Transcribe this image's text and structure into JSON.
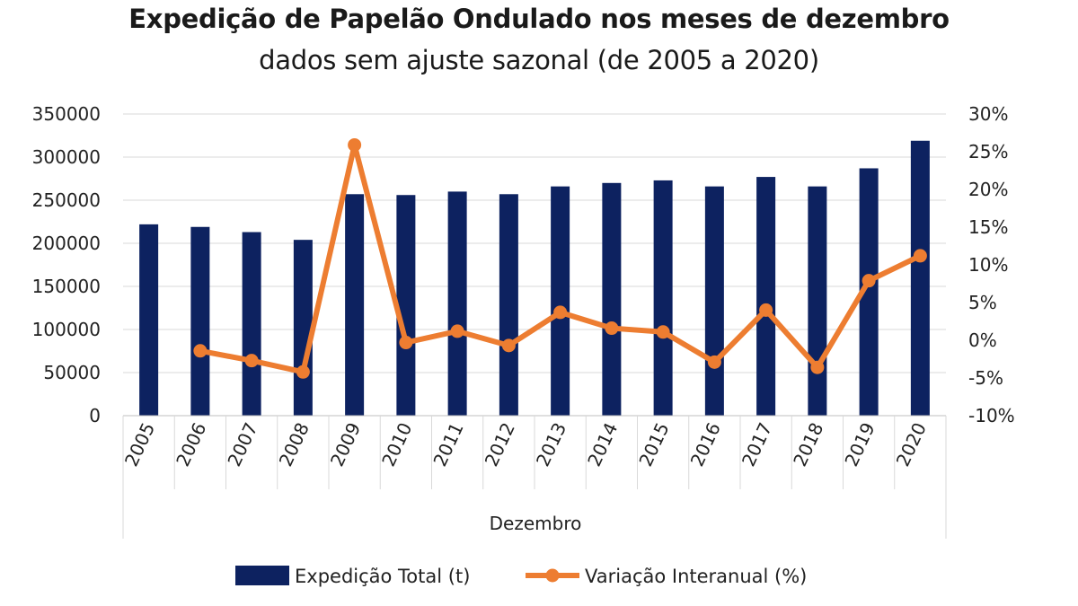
{
  "chart_data": {
    "type": "bar+line",
    "title": "Expedição de Papelão Ondulado nos meses de dezembro",
    "subtitle": "dados sem ajuste sazonal (de 2005 a 2020)",
    "xlabel": "Dezembro",
    "categories": [
      "2005",
      "2006",
      "2007",
      "2008",
      "2009",
      "2010",
      "2011",
      "2012",
      "2013",
      "2014",
      "2015",
      "2016",
      "2017",
      "2018",
      "2019",
      "2020"
    ],
    "series": [
      {
        "name": "Expedição Total (t)",
        "type": "bar",
        "axis": "left",
        "color": "#0d2260",
        "values": [
          222000,
          219000,
          213000,
          204000,
          257000,
          256000,
          260000,
          257000,
          266000,
          270000,
          273000,
          266000,
          277000,
          266000,
          287000,
          319000
        ]
      },
      {
        "name": "Variação Interanual (%)",
        "type": "line",
        "axis": "right",
        "color": "#ed7d31",
        "values": [
          null,
          -1.4,
          -2.7,
          -4.2,
          25.9,
          -0.3,
          1.2,
          -0.7,
          3.7,
          1.6,
          1.1,
          -2.9,
          4.0,
          -3.6,
          7.9,
          11.2
        ]
      }
    ],
    "y_left": {
      "ylim": [
        0,
        350000
      ],
      "ticks": [
        0,
        50000,
        100000,
        150000,
        200000,
        250000,
        300000,
        350000
      ],
      "tick_labels": [
        "0",
        "50000",
        "100000",
        "150000",
        "200000",
        "250000",
        "300000",
        "350000"
      ]
    },
    "y_right": {
      "ylim": [
        -10,
        30
      ],
      "ticks": [
        -10,
        -5,
        0,
        5,
        10,
        15,
        20,
        25,
        30
      ],
      "tick_labels": [
        "-10%",
        "-5%",
        "0%",
        "5%",
        "10%",
        "15%",
        "20%",
        "25%",
        "30%"
      ]
    },
    "grid": true,
    "legend_position": "bottom"
  }
}
